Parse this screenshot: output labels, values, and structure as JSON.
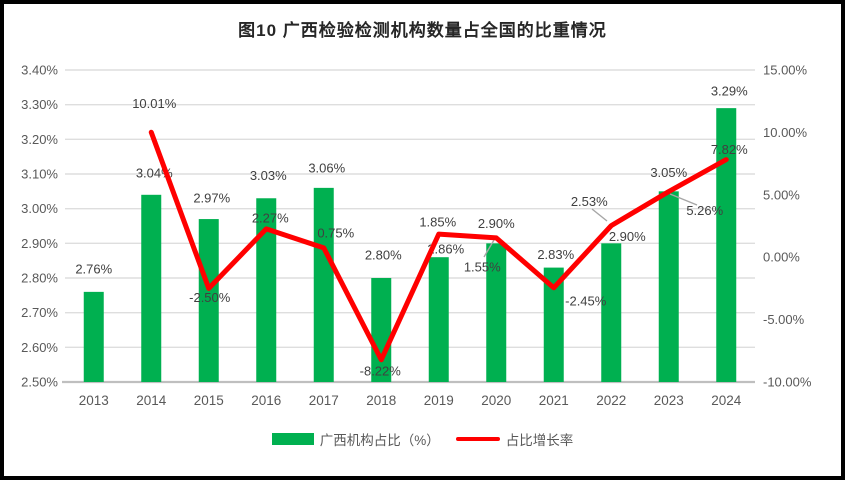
{
  "title": "图10 广西检验检测机构数量占全国的比重情况",
  "colors": {
    "bar": "#00B050",
    "line": "#FF0000",
    "grid": "#DEDEDE",
    "axis_line": "#BFBFBF",
    "label": "#404040",
    "axis_text": "#595959",
    "leader": "#A6A6A6"
  },
  "legend": {
    "bar_label": "广西机构占比（%）",
    "line_label": "占比增长率"
  },
  "chart_data": {
    "type": "combo-bar-line",
    "title": "图10 广西检验检测机构数量占全国的比重情况",
    "categories": [
      "2013",
      "2014",
      "2015",
      "2016",
      "2017",
      "2018",
      "2019",
      "2020",
      "2021",
      "2022",
      "2023",
      "2024"
    ],
    "series": [
      {
        "name": "广西机构占比（%）",
        "type": "bar",
        "axis": "left",
        "values": [
          2.76,
          3.04,
          2.97,
          3.03,
          3.06,
          2.8,
          2.86,
          2.9,
          2.83,
          2.9,
          3.05,
          3.29
        ],
        "labels": [
          "2.76%",
          "3.04%",
          "2.97%",
          "3.03%",
          "3.06%",
          "2.80%",
          "2.86%",
          "2.90%",
          "2.83%",
          "2.90%",
          "3.05%",
          "3.29%"
        ],
        "label_offsets": [
          [
            0,
            -23
          ],
          [
            3,
            -22
          ],
          [
            3,
            -21
          ],
          [
            2,
            -23
          ],
          [
            3,
            -20
          ],
          [
            2,
            -23
          ],
          [
            7,
            -8
          ],
          [
            0,
            -20
          ],
          [
            2,
            -13
          ],
          [
            16,
            -7
          ],
          [
            0,
            -19
          ],
          [
            3,
            -17
          ]
        ]
      },
      {
        "name": "占比增长率",
        "type": "line",
        "axis": "right",
        "values": [
          null,
          10.01,
          -2.5,
          2.27,
          0.75,
          -8.22,
          1.85,
          1.55,
          -2.45,
          2.53,
          5.26,
          7.82
        ],
        "labels": [
          null,
          "10.01%",
          "-2.50%",
          "2.27%",
          "0.75%",
          "-8.22%",
          "1.85%",
          "1.55%",
          "-2.45%",
          "2.53%",
          "5.26%",
          "7.82%"
        ],
        "label_offsets": [
          null,
          [
            3,
            -29
          ],
          [
            1,
            9
          ],
          [
            4,
            -11
          ],
          [
            12,
            -15
          ],
          [
            -1,
            11
          ],
          [
            -1,
            -12
          ],
          [
            -14,
            29
          ],
          [
            32,
            13
          ],
          [
            -22,
            -24
          ],
          [
            36,
            19
          ],
          [
            3,
            -10
          ]
        ]
      }
    ],
    "left_axis": {
      "min": 2.5,
      "max": 3.4,
      "step": 0.1,
      "ticks": [
        "3.40%",
        "3.30%",
        "3.20%",
        "3.10%",
        "3.00%",
        "2.90%",
        "2.80%",
        "2.70%",
        "2.60%",
        "2.50%"
      ]
    },
    "right_axis": {
      "min": -10,
      "max": 15,
      "step": 5,
      "ticks": [
        "15.00%",
        "10.00%",
        "5.00%",
        "0.00%",
        "-5.00%",
        "-10.00%"
      ]
    },
    "grid": true,
    "legend_position": "bottom",
    "leader_lines": [
      [
        494,
        240,
        484,
        257
      ],
      [
        607,
        221,
        592,
        209
      ],
      [
        670,
        194,
        697,
        205
      ]
    ]
  }
}
